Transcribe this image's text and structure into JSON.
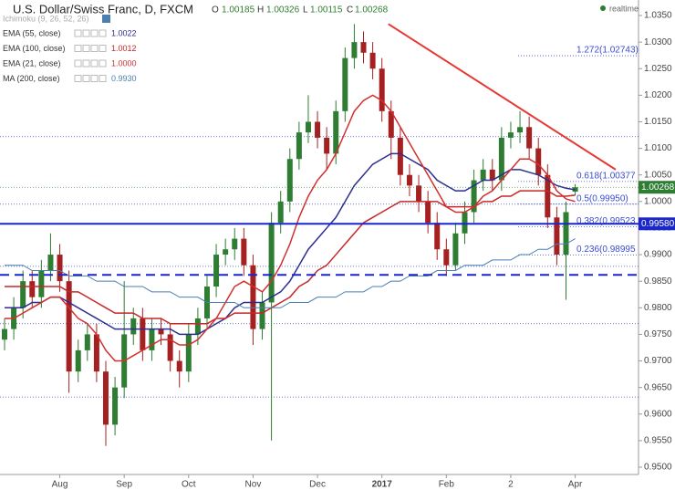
{
  "chart_data": {
    "type": "candlestick",
    "title": "U.S. Dollar/Swiss Franc, D, FXCM",
    "ohlc_labels": [
      "O",
      "H",
      "L",
      "C"
    ],
    "status": "realtime",
    "categories": [
      null,
      null,
      null,
      null,
      null,
      null,
      "Aug",
      null,
      null,
      null,
      null,
      null,
      null,
      "Sep",
      null,
      null,
      null,
      null,
      null,
      null,
      "Oct",
      null,
      null,
      null,
      null,
      null,
      null,
      "Nov",
      null,
      null,
      null,
      null,
      null,
      null,
      "Dec",
      null,
      null,
      null,
      null,
      null,
      null,
      "2017",
      null,
      null,
      null,
      null,
      null,
      null,
      "Feb",
      null,
      null,
      null,
      null,
      null,
      null,
      "2",
      null,
      null,
      null,
      null,
      null,
      null,
      "Apr"
    ],
    "open": [
      0.974,
      0.976,
      0.98,
      0.985,
      0.982,
      0.987,
      0.99,
      0.985,
      0.968,
      0.972,
      0.975,
      0.968,
      0.958,
      0.965,
      0.975,
      0.978,
      0.972,
      0.976,
      0.975,
      0.97,
      0.968,
      0.975,
      0.978,
      0.984,
      0.99,
      0.991,
      0.993,
      0.988,
      0.976,
      0.981,
      0.996,
      1.0,
      1.008,
      1.013,
      1.015,
      1.012,
      1.009,
      1.017,
      1.027,
      1.03,
      1.028,
      1.025,
      1.017,
      1.012,
      1.005,
      1.003,
      1.0,
      0.996,
      0.991,
      0.988,
      0.994,
      0.998,
      1.004,
      1.006,
      1.004,
      1.012,
      1.013,
      1.014,
      1.01,
      1.005,
      0.997,
      0.99,
      1.00185
    ],
    "high": [
      0.978,
      0.982,
      0.987,
      0.987,
      0.989,
      0.994,
      0.992,
      0.987,
      0.974,
      0.977,
      0.977,
      0.97,
      0.967,
      0.985,
      0.98,
      0.98,
      0.978,
      0.978,
      0.977,
      0.972,
      0.977,
      0.98,
      0.986,
      0.992,
      0.993,
      0.995,
      0.995,
      0.99,
      0.983,
      0.998,
      1.002,
      1.01,
      1.015,
      1.02,
      1.017,
      1.014,
      1.019,
      1.029,
      1.0334,
      1.032,
      1.03,
      1.027,
      1.019,
      1.014,
      1.007,
      1.005,
      1.002,
      0.998,
      0.993,
      0.996,
      1.0,
      1.006,
      1.008,
      1.008,
      1.014,
      1.015,
      1.017,
      1.016,
      1.012,
      1.007,
      0.999,
      1.0,
      1.00326
    ],
    "low": [
      0.972,
      0.974,
      0.978,
      0.98,
      0.98,
      0.985,
      0.983,
      0.964,
      0.966,
      0.97,
      0.966,
      0.954,
      0.956,
      0.963,
      0.973,
      0.97,
      0.97,
      0.973,
      0.968,
      0.965,
      0.966,
      0.973,
      0.976,
      0.982,
      0.988,
      0.989,
      0.986,
      0.973,
      0.974,
      0.955,
      0.994,
      0.998,
      1.006,
      1.011,
      1.01,
      1.006,
      1.007,
      1.015,
      1.025,
      1.026,
      1.023,
      1.015,
      1.008,
      1.003,
      1.001,
      0.998,
      0.994,
      0.989,
      0.986,
      0.987,
      0.992,
      0.996,
      1.002,
      1.002,
      1.002,
      1.01,
      1.011,
      1.008,
      1.003,
      0.995,
      0.988,
      0.9815,
      1.00115
    ],
    "close": [
      0.976,
      0.98,
      0.985,
      0.982,
      0.987,
      0.99,
      0.985,
      0.968,
      0.972,
      0.975,
      0.968,
      0.958,
      0.965,
      0.975,
      0.978,
      0.972,
      0.976,
      0.975,
      0.97,
      0.968,
      0.975,
      0.978,
      0.984,
      0.99,
      0.991,
      0.993,
      0.988,
      0.976,
      0.981,
      0.996,
      1.0,
      1.008,
      1.013,
      1.015,
      1.012,
      1.009,
      1.017,
      1.027,
      1.03,
      1.028,
      1.025,
      1.017,
      1.012,
      1.005,
      1.003,
      1.0,
      0.996,
      0.991,
      0.988,
      0.994,
      0.998,
      1.004,
      1.006,
      1.004,
      1.012,
      1.013,
      1.014,
      1.01,
      1.005,
      0.997,
      0.99,
      0.998,
      1.00268
    ],
    "up_color": "#2e7d32",
    "down_color": "#a52121",
    "indicator": "Ichimoku (9, 26, 52, 26)",
    "series": [
      {
        "name": "EMA (55, close)",
        "color": "#2b2f8f",
        "value_label": "1.0022",
        "values": [
          0.98,
          0.98,
          0.98,
          0.981,
          0.981,
          0.982,
          0.982,
          0.981,
          0.98,
          0.979,
          0.978,
          0.977,
          0.976,
          0.976,
          0.976,
          0.976,
          0.976,
          0.976,
          0.976,
          0.975,
          0.975,
          0.975,
          0.976,
          0.977,
          0.978,
          0.98,
          0.981,
          0.981,
          0.981,
          0.982,
          0.983,
          0.985,
          0.988,
          0.991,
          0.993,
          0.995,
          0.997,
          1.0,
          1.003,
          1.005,
          1.007,
          1.008,
          1.009,
          1.009,
          1.008,
          1.007,
          1.006,
          1.004,
          1.003,
          1.002,
          1.002,
          1.003,
          1.004,
          1.004,
          1.005,
          1.006,
          1.006,
          1.0055,
          1.005,
          1.004,
          1.003,
          1.0025,
          1.0022
        ]
      },
      {
        "name": "EMA (100, close)",
        "color": "#c62828",
        "value_label": "1.0012",
        "values": [
          0.984,
          0.984,
          0.984,
          0.984,
          0.984,
          0.984,
          0.984,
          0.983,
          0.983,
          0.982,
          0.981,
          0.98,
          0.979,
          0.979,
          0.979,
          0.978,
          0.978,
          0.978,
          0.977,
          0.977,
          0.977,
          0.977,
          0.977,
          0.978,
          0.978,
          0.979,
          0.979,
          0.979,
          0.979,
          0.98,
          0.981,
          0.982,
          0.984,
          0.985,
          0.987,
          0.988,
          0.99,
          0.992,
          0.994,
          0.996,
          0.997,
          0.998,
          0.999,
          1.0,
          1.0,
          1.0,
          1.0,
          1.0,
          0.999,
          0.999,
          0.999,
          0.999,
          1.0,
          1.0,
          1.001,
          1.001,
          1.002,
          1.002,
          1.002,
          1.002,
          1.001,
          1.001,
          1.0012
        ]
      },
      {
        "name": "EMA (21, close)",
        "color": "#d32f2f",
        "value_label": "1.0000",
        "values": [
          0.978,
          0.978,
          0.979,
          0.98,
          0.981,
          0.982,
          0.982,
          0.98,
          0.978,
          0.977,
          0.975,
          0.972,
          0.97,
          0.97,
          0.971,
          0.972,
          0.973,
          0.974,
          0.974,
          0.973,
          0.973,
          0.974,
          0.976,
          0.978,
          0.981,
          0.984,
          0.985,
          0.984,
          0.983,
          0.985,
          0.988,
          0.992,
          0.997,
          1.001,
          1.004,
          1.006,
          1.009,
          1.013,
          1.017,
          1.019,
          1.02,
          1.019,
          1.017,
          1.014,
          1.011,
          1.008,
          1.005,
          1.002,
          0.999,
          0.998,
          0.998,
          0.999,
          1.001,
          1.002,
          1.004,
          1.006,
          1.008,
          1.008,
          1.007,
          1.005,
          1.002,
          1.0005,
          1.0
        ]
      },
      {
        "name": "MA (200, close)",
        "color": "#4a7fb0",
        "value_label": "0.9930",
        "values": [
          0.988,
          0.988,
          0.988,
          0.987,
          0.987,
          0.987,
          0.987,
          0.986,
          0.986,
          0.986,
          0.985,
          0.985,
          0.985,
          0.984,
          0.984,
          0.984,
          0.983,
          0.983,
          0.983,
          0.982,
          0.982,
          0.982,
          0.981,
          0.981,
          0.981,
          0.981,
          0.98,
          0.98,
          0.98,
          0.98,
          0.98,
          0.981,
          0.981,
          0.981,
          0.982,
          0.982,
          0.982,
          0.983,
          0.983,
          0.983,
          0.984,
          0.984,
          0.985,
          0.985,
          0.986,
          0.986,
          0.986,
          0.987,
          0.987,
          0.987,
          0.988,
          0.988,
          0.988,
          0.989,
          0.989,
          0.989,
          0.99,
          0.99,
          0.991,
          0.991,
          0.992,
          0.992,
          0.993
        ]
      }
    ],
    "ylim": [
      0.95,
      1.035
    ],
    "yticks": [
      {
        "value": 1.035,
        "label": "1.0350"
      },
      {
        "value": 1.03,
        "label": "1.0300"
      },
      {
        "value": 1.025,
        "label": "1.0250"
      },
      {
        "value": 1.02,
        "label": "1.0200"
      },
      {
        "value": 1.015,
        "label": "1.0150"
      },
      {
        "value": 1.01,
        "label": "1.0100"
      },
      {
        "value": 1.005,
        "label": "1.0050"
      },
      {
        "value": 1.0,
        "label": "1.0000"
      },
      {
        "value": 0.995,
        "label": "0.9950"
      },
      {
        "value": 0.99,
        "label": "0.9900"
      },
      {
        "value": 0.985,
        "label": "0.9850"
      },
      {
        "value": 0.98,
        "label": "0.9800"
      },
      {
        "value": 0.975,
        "label": "0.9750"
      },
      {
        "value": 0.97,
        "label": "0.9700"
      },
      {
        "value": 0.965,
        "label": "0.9650"
      },
      {
        "value": 0.96,
        "label": "0.9600"
      },
      {
        "value": 0.955,
        "label": "0.9550"
      },
      {
        "value": 0.95,
        "label": "0.9500"
      }
    ],
    "levels": [
      {
        "value": 0.9958,
        "label": "0.99580",
        "style": "solid",
        "color": "#1a27c9"
      },
      {
        "value": 0.9862,
        "style": "dashed",
        "color": "#1a27c9"
      }
    ],
    "dotted_levels": [
      1.0122,
      0.9995,
      0.9878,
      0.977,
      0.9632
    ],
    "fib_levels": [
      {
        "value": 1.02743,
        "label": "1.272(1.02743)"
      },
      {
        "value": 1.00377,
        "label": "0.618(1.00377"
      },
      {
        "value": 0.9995,
        "label": "0.5(0.99950)"
      },
      {
        "value": 0.99523,
        "label": "0.382(0.99523"
      },
      {
        "value": 0.98995,
        "label": "0.236(0.98995"
      }
    ],
    "trendline": {
      "color": "#e53935",
      "x": [
        41.7,
        66.4
      ],
      "y": [
        1.0334,
        1.006
      ]
    }
  }
}
